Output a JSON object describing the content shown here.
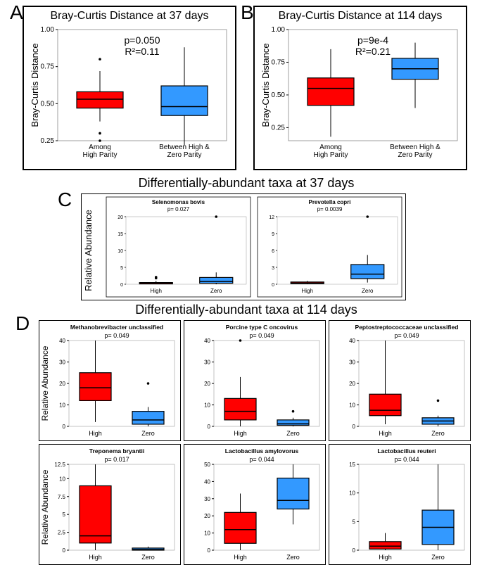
{
  "colors": {
    "red": "#ff0000",
    "blue": "#3399ff",
    "stroke": "#000000",
    "grid": "#e0e0e0",
    "panel_bg": "#ffffff",
    "panel_border": "#000000"
  },
  "panelA": {
    "letter": "A",
    "title": "Bray-Curtis Distance at 37 days",
    "ylabel": "Bray-Curtis Distance",
    "stats": "p=0.050\nR²=0.11",
    "ylim": [
      0.25,
      1.0
    ],
    "yticks": [
      0.25,
      0.5,
      0.75,
      1.0
    ],
    "categories": [
      "Among\nHigh Parity",
      "Between High &\nZero Parity"
    ],
    "boxes": [
      {
        "q1": 0.47,
        "med": 0.53,
        "q3": 0.58,
        "wlo": 0.38,
        "whi": 0.72,
        "out": [
          0.8,
          0.3,
          0.25
        ],
        "fill": "red"
      },
      {
        "q1": 0.42,
        "med": 0.48,
        "q3": 0.62,
        "wlo": 0.22,
        "whi": 0.88,
        "out": [],
        "fill": "blue"
      }
    ]
  },
  "panelB": {
    "letter": "B",
    "title": "Bray-Curtis Distance at 114 days",
    "ylabel": "Bray-Curtis Distance",
    "stats": "p=9e-4\nR²=0.21",
    "ylim": [
      0.15,
      1.0
    ],
    "yticks": [
      0.25,
      0.5,
      0.75,
      1.0
    ],
    "categories": [
      "Among\nHigh Parity",
      "Between High &\nZero Parity"
    ],
    "boxes": [
      {
        "q1": 0.42,
        "med": 0.55,
        "q3": 0.63,
        "wlo": 0.18,
        "whi": 0.85,
        "out": [],
        "fill": "red"
      },
      {
        "q1": 0.62,
        "med": 0.7,
        "q3": 0.78,
        "wlo": 0.4,
        "whi": 0.9,
        "out": [],
        "fill": "blue"
      }
    ]
  },
  "panelC": {
    "letter": "C",
    "section_title": "Differentially-abundant taxa at 37 days",
    "ylabel": "Relative Abundance",
    "xcats": [
      "High",
      "Zero"
    ],
    "plots": [
      {
        "title": "Selenomonas bovis",
        "pval": "p= 0.027",
        "ylim": [
          0,
          20
        ],
        "yticks": [
          0,
          5,
          10,
          15,
          20
        ],
        "boxes": [
          {
            "q1": 0.1,
            "med": 0.2,
            "q3": 0.5,
            "wlo": 0,
            "whi": 1.0,
            "out": [
              1.8,
              2.1
            ],
            "fill": "red"
          },
          {
            "q1": 0.3,
            "med": 0.8,
            "q3": 2.0,
            "wlo": 0,
            "whi": 3.5,
            "out": [
              20
            ],
            "fill": "blue"
          }
        ]
      },
      {
        "title": "Prevotella copri",
        "pval": "p= 0.0039",
        "ylim": [
          0,
          12
        ],
        "yticks": [
          0,
          3,
          6,
          9,
          12
        ],
        "boxes": [
          {
            "q1": 0.1,
            "med": 0.2,
            "q3": 0.4,
            "wlo": 0,
            "whi": 0.6,
            "out": [],
            "fill": "red"
          },
          {
            "q1": 1.0,
            "med": 1.8,
            "q3": 3.5,
            "wlo": 0.3,
            "whi": 5.2,
            "out": [
              12
            ],
            "fill": "blue"
          }
        ]
      }
    ]
  },
  "panelD": {
    "letter": "D",
    "section_title": "Differentially-abundant taxa at 114 days",
    "ylabel": "Relative Abundance",
    "xcats": [
      "High",
      "Zero"
    ],
    "rows": [
      [
        {
          "title": "Methanobrevibacter unclassified",
          "pval": "p= 0.049",
          "ylim": [
            0,
            40
          ],
          "yticks": [
            0,
            10,
            20,
            30,
            40
          ],
          "boxes": [
            {
              "q1": 12,
              "med": 18,
              "q3": 25,
              "wlo": 2,
              "whi": 40,
              "out": [],
              "fill": "red"
            },
            {
              "q1": 1,
              "med": 3,
              "q3": 7,
              "wlo": 0,
              "whi": 9,
              "out": [
                20
              ],
              "fill": "blue"
            }
          ]
        },
        {
          "title": "Porcine type C oncovirus",
          "pval": "p= 0.049",
          "ylim": [
            0,
            40
          ],
          "yticks": [
            0,
            10,
            20,
            30,
            40
          ],
          "boxes": [
            {
              "q1": 3,
              "med": 7,
              "q3": 13,
              "wlo": 0,
              "whi": 23,
              "out": [
                44
              ],
              "fill": "red"
            },
            {
              "q1": 0.5,
              "med": 1.2,
              "q3": 3,
              "wlo": 0,
              "whi": 4,
              "out": [
                7
              ],
              "fill": "blue"
            }
          ]
        },
        {
          "title": "Peptostreptococcaceae unclassified",
          "pval": "p= 0.049",
          "ylim": [
            0,
            40
          ],
          "yticks": [
            0,
            10,
            20,
            30,
            40
          ],
          "boxes": [
            {
              "q1": 5,
              "med": 7.5,
              "q3": 15,
              "wlo": 1,
              "whi": 42,
              "out": [],
              "fill": "red"
            },
            {
              "q1": 1,
              "med": 2.5,
              "q3": 4,
              "wlo": 0,
              "whi": 5,
              "out": [
                12
              ],
              "fill": "blue"
            }
          ]
        }
      ],
      [
        {
          "title": "Treponema bryantii",
          "pval": "p= 0.017",
          "ylim": [
            0,
            12
          ],
          "yticks": [
            0,
            2.5,
            5,
            7.5,
            10,
            12.5
          ],
          "boxes": [
            {
              "q1": 1,
              "med": 2,
              "q3": 9,
              "wlo": 0,
              "whi": 12,
              "out": [],
              "fill": "red"
            },
            {
              "q1": 0,
              "med": 0.1,
              "q3": 0.3,
              "wlo": 0,
              "whi": 0.5,
              "out": [],
              "fill": "blue"
            }
          ]
        },
        {
          "title": "Lactobacillus amylovorus",
          "pval": "p= 0.044",
          "ylim": [
            0,
            50
          ],
          "yticks": [
            0,
            10,
            20,
            30,
            40,
            50
          ],
          "boxes": [
            {
              "q1": 4,
              "med": 12,
              "q3": 22,
              "wlo": 0,
              "whi": 33,
              "out": [],
              "fill": "red"
            },
            {
              "q1": 24,
              "med": 29,
              "q3": 42,
              "wlo": 15,
              "whi": 56,
              "out": [],
              "fill": "blue"
            }
          ]
        },
        {
          "title": "Lactobacillus reuteri",
          "pval": "p= 0.044",
          "ylim": [
            0,
            15
          ],
          "yticks": [
            0,
            5,
            10,
            15
          ],
          "boxes": [
            {
              "q1": 0.2,
              "med": 0.7,
              "q3": 1.5,
              "wlo": 0,
              "whi": 3,
              "out": [],
              "fill": "red"
            },
            {
              "q1": 1,
              "med": 4,
              "q3": 7,
              "wlo": 0,
              "whi": 15,
              "out": [],
              "fill": "blue"
            }
          ]
        }
      ]
    ]
  }
}
